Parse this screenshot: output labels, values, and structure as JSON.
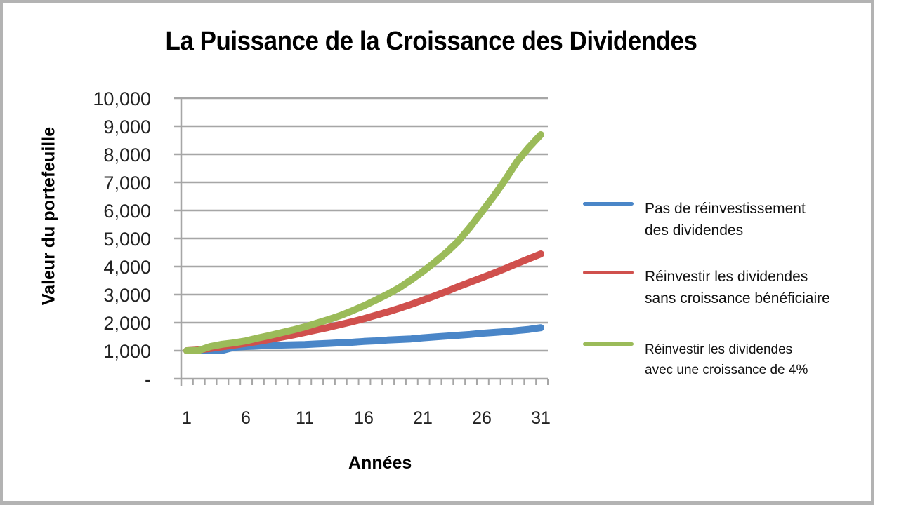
{
  "chart_data": {
    "type": "line",
    "title": "La Puissance de la Croissance des Dividendes",
    "xlabel": "Années",
    "ylabel": "Valeur du portefeuille",
    "ylim": [
      0,
      10000
    ],
    "y_ticks": [
      "-",
      "1,000",
      "2,000",
      "3,000",
      "4,000",
      "5,000",
      "6,000",
      "7,000",
      "8,000",
      "9,000",
      "10,000"
    ],
    "x_tick_labels": [
      "1",
      "6",
      "11",
      "16",
      "21",
      "26",
      "31"
    ],
    "x": [
      1,
      2,
      3,
      4,
      5,
      6,
      7,
      8,
      9,
      10,
      11,
      12,
      13,
      14,
      15,
      16,
      17,
      18,
      19,
      20,
      21,
      22,
      23,
      24,
      25,
      26,
      27,
      28,
      29,
      30,
      31
    ],
    "grid": "horizontal",
    "legend_position": "right",
    "series": [
      {
        "name": "Pas de réinvestissement\ndes dividendes",
        "color": "#4a86c8",
        "values": [
          1000,
          1000,
          1000,
          1010,
          1120,
          1150,
          1170,
          1190,
          1200,
          1210,
          1220,
          1240,
          1260,
          1280,
          1300,
          1330,
          1350,
          1380,
          1400,
          1420,
          1460,
          1490,
          1520,
          1550,
          1580,
          1620,
          1650,
          1680,
          1720,
          1760,
          1820
        ]
      },
      {
        "name": "Réinvestir les dividendes\nsans croissance bénéficiaire",
        "color": "#d0504d",
        "values": [
          1000,
          1030,
          1080,
          1140,
          1200,
          1260,
          1330,
          1400,
          1480,
          1560,
          1650,
          1740,
          1830,
          1930,
          2030,
          2140,
          2260,
          2380,
          2510,
          2650,
          2800,
          2950,
          3110,
          3280,
          3440,
          3600,
          3760,
          3930,
          4110,
          4280,
          4450
        ]
      },
      {
        "name": "Réinvestir les dividendes\navec une croissance de 4%",
        "color": "#9bbb59",
        "values": [
          1000,
          1010,
          1150,
          1230,
          1280,
          1350,
          1450,
          1540,
          1640,
          1740,
          1850,
          1980,
          2110,
          2250,
          2420,
          2600,
          2800,
          3010,
          3240,
          3520,
          3820,
          4150,
          4500,
          4900,
          5400,
          5950,
          6500,
          7100,
          7750,
          8250,
          8700
        ]
      }
    ]
  },
  "labels": {
    "title": "La Puissance de la Croissance des Dividendes",
    "xlabel": "Années",
    "ylabel": "Valeur du portefeuille"
  },
  "legend": [
    {
      "label": "Pas de réinvestissement\ndes dividendes",
      "color": "#4a86c8"
    },
    {
      "label": "Réinvestir les dividendes\nsans croissance bénéficiaire",
      "color": "#d0504d"
    },
    {
      "label": "Réinvestir les dividendes\navec une croissance de 4%",
      "color": "#9bbb59"
    }
  ]
}
